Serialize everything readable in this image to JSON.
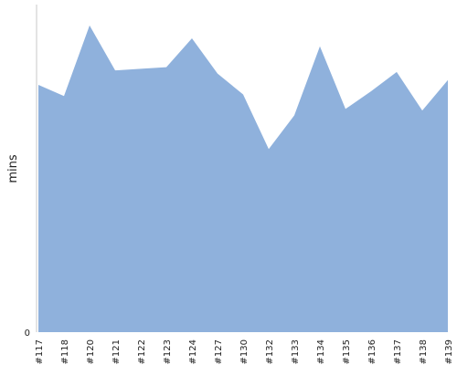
{
  "chart_data": {
    "type": "area",
    "categories": [
      "#117",
      "#118",
      "#120",
      "#121",
      "#122",
      "#123",
      "#124",
      "#127",
      "#130",
      "#132",
      "#133",
      "#134",
      "#135",
      "#136",
      "#137",
      "#138",
      "#139"
    ],
    "values": [
      77,
      73.5,
      95.5,
      81.5,
      82,
      82.5,
      91.5,
      80.5,
      74,
      57,
      67.5,
      89,
      69.5,
      75,
      81,
      69,
      78.5
    ],
    "ylabel": "mins",
    "xlabel": "",
    "y_ticks": [
      0
    ],
    "ylim": [
      0,
      102
    ],
    "grid": false,
    "colors": {
      "fill": "#8fb1dc",
      "axis": "#c8c8c8",
      "text": "#222222"
    }
  }
}
